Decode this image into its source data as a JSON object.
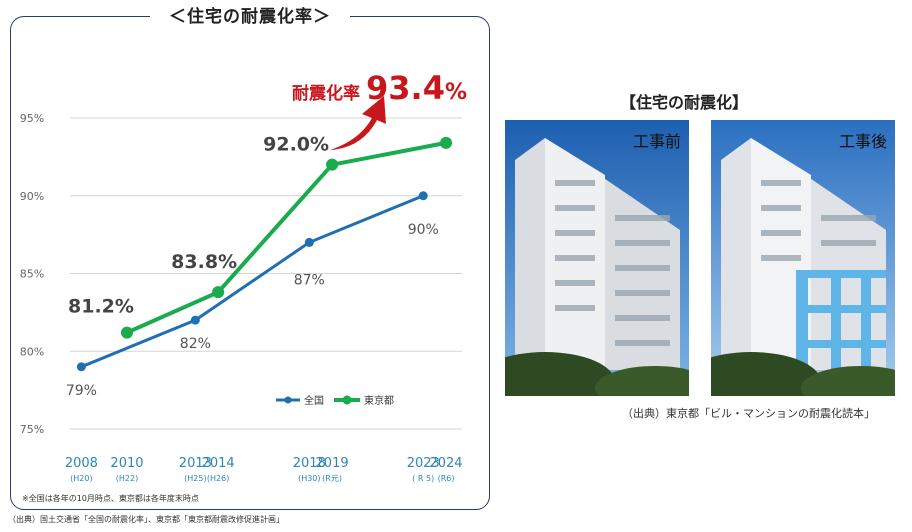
{
  "panel": {
    "title": "＜住宅の耐震化率＞",
    "headline_label": "耐震化率",
    "headline_value": "93.4",
    "headline_unit": "%",
    "note": "※全国は各年の10月時点、東京都は各年度末時点",
    "source": "（出典）国土交通省「全国の耐震化率」、東京都「東京都耐震改修促進計画」"
  },
  "chart_data": {
    "type": "line",
    "ylim": [
      75,
      95
    ],
    "yticks": [
      75,
      80,
      85,
      90,
      95
    ],
    "ytick_labels": [
      "75%",
      "80%",
      "85%",
      "90%",
      "95%"
    ],
    "x_groups": [
      {
        "years": [
          "2008",
          "2010"
        ],
        "eras": [
          "(H20)",
          "(H22)"
        ]
      },
      {
        "years": [
          "2013",
          "2014"
        ],
        "eras": [
          "(H25)",
          "(H26)"
        ]
      },
      {
        "years": [
          "2018",
          "2019"
        ],
        "eras": [
          "(H30)",
          "(R元)"
        ]
      },
      {
        "years": [
          "2023",
          "2024"
        ],
        "eras": [
          "( R 5)",
          "(R6)"
        ]
      }
    ],
    "series": [
      {
        "name": "全国",
        "color": "#1f6fb2",
        "x": [
          2008,
          2013,
          2018,
          2023
        ],
        "values": [
          79,
          82,
          87,
          90
        ],
        "labels": [
          "79%",
          "82%",
          "87%",
          "90%"
        ]
      },
      {
        "name": "東京都",
        "color": "#1aab4f",
        "x": [
          2010,
          2014,
          2019,
          2024
        ],
        "values": [
          81.2,
          83.8,
          92.0,
          93.4
        ],
        "labels": [
          "81.2%",
          "83.8%",
          "92.0%",
          ""
        ]
      }
    ],
    "legend_position": "bottom-right",
    "grid": "horizontal",
    "accent_color": "#c8161d"
  },
  "right": {
    "title": "【住宅の耐震化】",
    "before_label": "工事前",
    "after_label": "工事後",
    "source": "（出典）東京都「ビル・マンションの耐震化読本」"
  }
}
